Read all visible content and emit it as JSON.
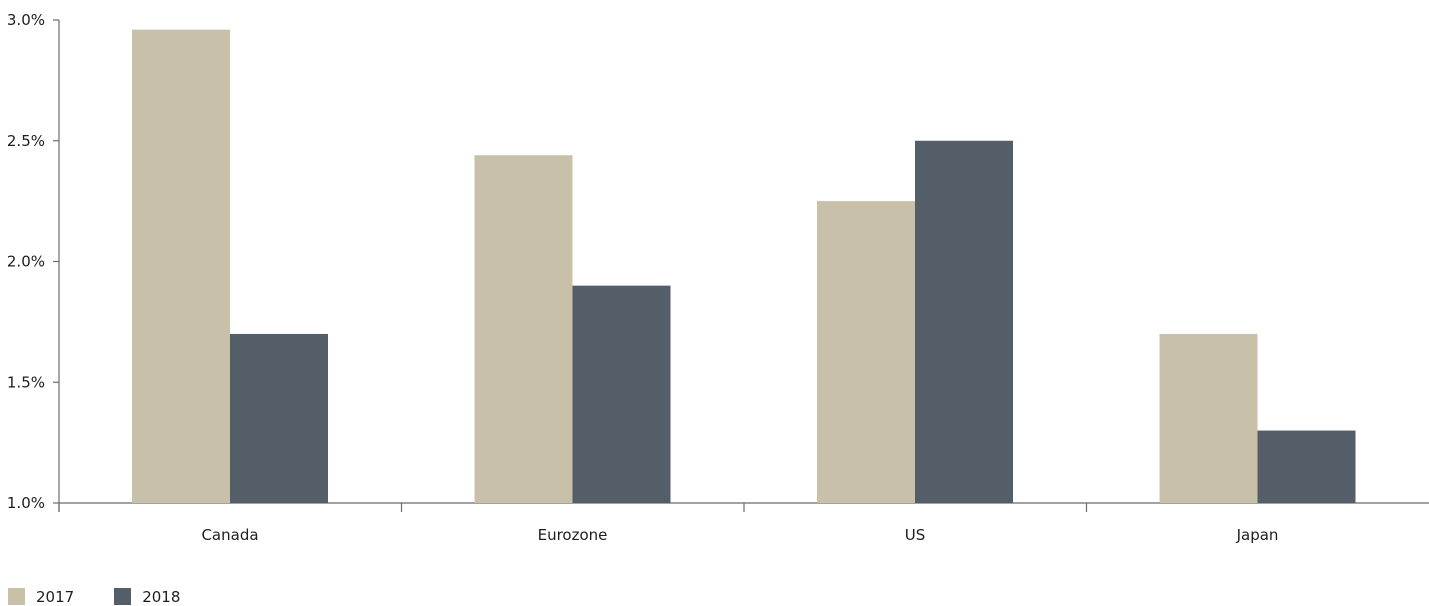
{
  "chart_data": {
    "type": "bar",
    "categories": [
      "Canada",
      "Eurozone",
      "US",
      "Japan"
    ],
    "series": [
      {
        "name": "2017",
        "values": [
          2.96,
          2.44,
          2.25,
          1.7
        ],
        "color": "#c8c0a9"
      },
      {
        "name": "2018",
        "values": [
          1.7,
          1.9,
          2.5,
          1.3
        ],
        "color": "#535e69"
      }
    ],
    "ylim": [
      1.0,
      3.0
    ],
    "yticks": [
      3.0,
      2.5,
      2.0,
      1.5,
      1.0
    ],
    "ytick_labels": [
      "3.0%",
      "2.5%",
      "2.0%",
      "1.5%",
      "1.0%"
    ],
    "title": "",
    "xlabel": "",
    "ylabel": "",
    "grid": false,
    "legend_position": "bottom-left"
  },
  "legend": {
    "items": [
      {
        "label": "2017",
        "color": "#c8c0a9"
      },
      {
        "label": "2018",
        "color": "#535e69"
      }
    ]
  }
}
